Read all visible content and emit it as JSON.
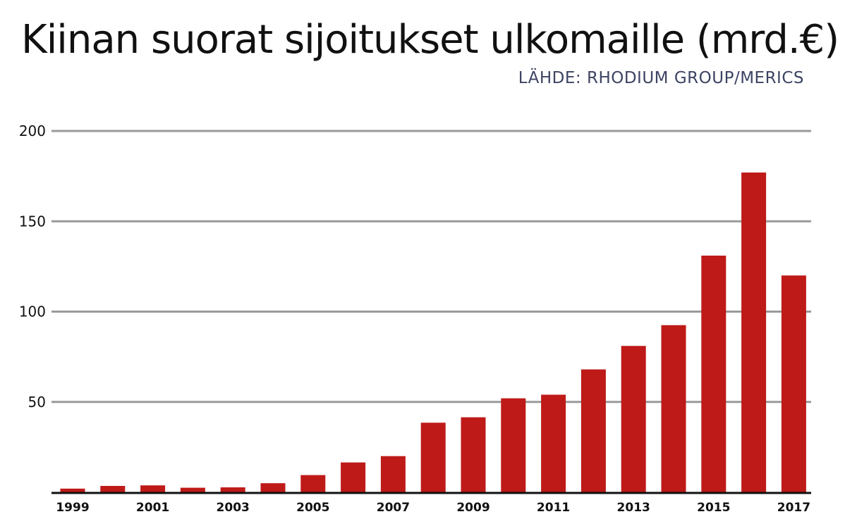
{
  "chart_data": {
    "type": "bar",
    "title": "Kiinan suorat sijoitukset ulkomaille (mrd.€)",
    "source": "LÄHDE: RHODIUM GROUP/MERICS",
    "categories": [
      "1999",
      "2000",
      "2001",
      "2002",
      "2003",
      "2004",
      "2005",
      "2006",
      "2007",
      "2008",
      "2009",
      "2010",
      "2011",
      "2012",
      "2013",
      "2014",
      "2015",
      "2016",
      "2017"
    ],
    "x_tick_labels": [
      "1999",
      "2001",
      "2003",
      "2005",
      "2007",
      "2009",
      "2011",
      "2013",
      "2015",
      "2017"
    ],
    "values": [
      2,
      3.5,
      3.8,
      2.5,
      2.7,
      5,
      9.5,
      16.5,
      20,
      38.5,
      41.5,
      52,
      54,
      68,
      81,
      92.5,
      131,
      177,
      120
    ],
    "ylim": [
      0,
      200
    ],
    "yticks": [
      200,
      150,
      100,
      50
    ],
    "grid": true,
    "xlabel": "",
    "ylabel": "",
    "bar_color": "#be1a18",
    "grid_color": "#9a9a9a"
  }
}
